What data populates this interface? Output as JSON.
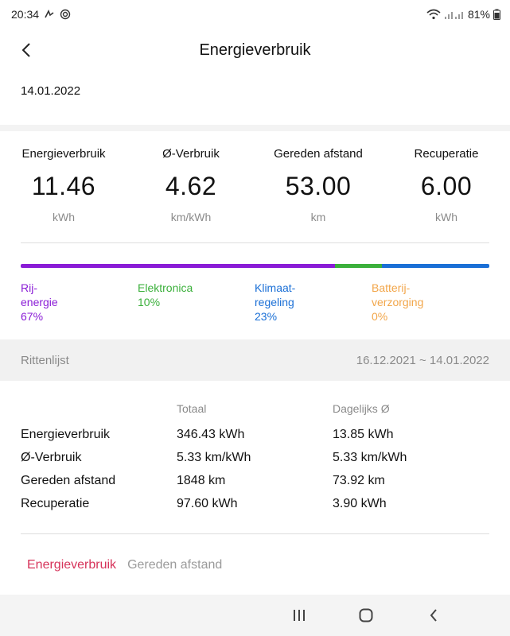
{
  "status_bar": {
    "time": "20:34",
    "battery": "81%"
  },
  "header": {
    "title": "Energieverbruik"
  },
  "date": "14.01.2022",
  "summary": [
    {
      "label": "Energieverbruik",
      "value": "11.46",
      "unit": "kWh"
    },
    {
      "label": "Ø-Verbruik",
      "value": "4.62",
      "unit": "km/kWh"
    },
    {
      "label": "Gereden afstand",
      "value": "53.00",
      "unit": "km"
    },
    {
      "label": "Recuperatie",
      "value": "6.00",
      "unit": "kWh"
    }
  ],
  "energy_split": [
    {
      "name": "Rij-\nenergie",
      "percent_label": "67%",
      "percent": 67,
      "color": "#8a1cd6"
    },
    {
      "name": "Elektronica",
      "percent_label": "10%",
      "percent": 10,
      "color": "#3bb03b"
    },
    {
      "name": "Klimaat-\nregeling",
      "percent_label": "23%",
      "percent": 23,
      "color": "#1a6fd6"
    },
    {
      "name": "Batterij-\nverzorging",
      "percent_label": "0%",
      "percent": 0,
      "color": "#f2a64a"
    }
  ],
  "trips": {
    "title": "Rittenlijst",
    "range": "16.12.2021 ~ 14.01.2022",
    "columns": [
      "Totaal",
      "Dagelijks Ø"
    ],
    "rows": [
      {
        "label": "Energieverbruik",
        "total": "346.43 kWh",
        "daily": "13.85 kWh"
      },
      {
        "label": "Ø-Verbruik",
        "total": "5.33 km/kWh",
        "daily": "5.33 km/kWh"
      },
      {
        "label": "Gereden afstand",
        "total": "1848 km",
        "daily": "73.92 km"
      },
      {
        "label": "Recuperatie",
        "total": "97.60 kWh",
        "daily": "3.90 kWh"
      }
    ]
  },
  "tabs": [
    {
      "label": "Energieverbruik",
      "active": true
    },
    {
      "label": "Gereden afstand",
      "active": false
    }
  ],
  "colors": {
    "active_tab": "#d6335a",
    "inactive_tab": "#9a9a9a"
  }
}
